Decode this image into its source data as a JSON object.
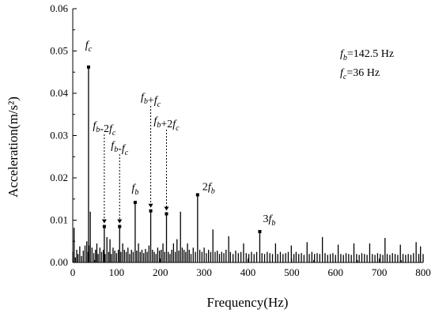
{
  "chart_data": {
    "type": "line",
    "xlabel": "Frequency(Hz)",
    "ylabel": "Acceleration(m/s²)",
    "xlim": [
      0,
      800
    ],
    "ylim": [
      0,
      0.06
    ],
    "x_ticks": [
      0,
      100,
      200,
      300,
      400,
      500,
      600,
      700,
      800
    ],
    "x_tick_labels": [
      "0",
      "100",
      "200",
      "300",
      "400",
      "500",
      "600",
      "700",
      "800"
    ],
    "y_ticks": [
      0,
      0.01,
      0.02,
      0.03,
      0.04,
      0.05,
      0.06
    ],
    "y_tick_labels": [
      "0.00",
      "0.01",
      "0.02",
      "0.03",
      "0.04",
      "0.05",
      "0.06"
    ],
    "grid": false,
    "info_lines": [
      {
        "sym": "f",
        "sub": "b",
        "rest": "=142.5 Hz"
      },
      {
        "sym": "f",
        "sub": "c",
        "rest": "=36 Hz"
      }
    ],
    "peaks": [
      {
        "x": 36,
        "y": 0.0462,
        "label": "f_c",
        "label_style": "above"
      },
      {
        "x": 72,
        "y": 0.0085,
        "label": "f_b-2f_c",
        "label_style": "arrow"
      },
      {
        "x": 107,
        "y": 0.0085,
        "label": "f_b-f_c",
        "label_style": "arrow"
      },
      {
        "x": 142.5,
        "y": 0.0142,
        "label": "f_b",
        "label_style": "above"
      },
      {
        "x": 178,
        "y": 0.0122,
        "label": "f_b+f_c",
        "label_style": "arrow"
      },
      {
        "x": 214,
        "y": 0.0115,
        "label": "f_b+2f_c",
        "label_style": "arrow"
      },
      {
        "x": 285,
        "y": 0.016,
        "label": "2f_b",
        "label_style": "right"
      },
      {
        "x": 427,
        "y": 0.0073,
        "label": "3f_b",
        "label_style": "above"
      }
    ],
    "series": [
      {
        "points": [
          [
            0,
            0.0025
          ],
          [
            3,
            0.0082
          ],
          [
            6,
            0.0012
          ],
          [
            9,
            0.003
          ],
          [
            12,
            0.002
          ],
          [
            16,
            0.0038
          ],
          [
            20,
            0.0015
          ],
          [
            24,
            0.0028
          ],
          [
            28,
            0.004
          ],
          [
            32,
            0.005
          ],
          [
            35,
            0.0025
          ],
          [
            36,
            0.0462
          ],
          [
            37,
            0.004
          ],
          [
            40,
            0.012
          ],
          [
            44,
            0.0035
          ],
          [
            48,
            0.0022
          ],
          [
            52,
            0.003
          ],
          [
            55,
            0.0045
          ],
          [
            58,
            0.002
          ],
          [
            62,
            0.0035
          ],
          [
            66,
            0.0025
          ],
          [
            70,
            0.003
          ],
          [
            72,
            0.0085
          ],
          [
            74,
            0.002
          ],
          [
            78,
            0.006
          ],
          [
            82,
            0.0025
          ],
          [
            85,
            0.0055
          ],
          [
            88,
            0.002
          ],
          [
            92,
            0.0035
          ],
          [
            96,
            0.0028
          ],
          [
            100,
            0.0022
          ],
          [
            104,
            0.003
          ],
          [
            107,
            0.0085
          ],
          [
            110,
            0.0025
          ],
          [
            114,
            0.0045
          ],
          [
            118,
            0.003
          ],
          [
            122,
            0.0025
          ],
          [
            126,
            0.0035
          ],
          [
            130,
            0.002
          ],
          [
            134,
            0.003
          ],
          [
            138,
            0.0025
          ],
          [
            142.5,
            0.0142
          ],
          [
            146,
            0.0028
          ],
          [
            150,
            0.0045
          ],
          [
            154,
            0.0025
          ],
          [
            158,
            0.003
          ],
          [
            162,
            0.0022
          ],
          [
            166,
            0.0032
          ],
          [
            170,
            0.0025
          ],
          [
            174,
            0.004
          ],
          [
            178,
            0.0122
          ],
          [
            182,
            0.003
          ],
          [
            186,
            0.0025
          ],
          [
            190,
            0.002
          ],
          [
            194,
            0.0035
          ],
          [
            198,
            0.0028
          ],
          [
            202,
            0.003
          ],
          [
            206,
            0.0045
          ],
          [
            210,
            0.0025
          ],
          [
            214,
            0.0115
          ],
          [
            218,
            0.0025
          ],
          [
            222,
            0.002
          ],
          [
            226,
            0.003
          ],
          [
            230,
            0.0045
          ],
          [
            234,
            0.0025
          ],
          [
            238,
            0.0055
          ],
          [
            242,
            0.0028
          ],
          [
            246,
            0.012
          ],
          [
            250,
            0.0035
          ],
          [
            254,
            0.003
          ],
          [
            258,
            0.0025
          ],
          [
            262,
            0.0045
          ],
          [
            266,
            0.003
          ],
          [
            270,
            0.002
          ],
          [
            275,
            0.0035
          ],
          [
            280,
            0.0025
          ],
          [
            285,
            0.016
          ],
          [
            290,
            0.003
          ],
          [
            295,
            0.0025
          ],
          [
            300,
            0.0035
          ],
          [
            305,
            0.0022
          ],
          [
            310,
            0.003
          ],
          [
            315,
            0.0025
          ],
          [
            320,
            0.0078
          ],
          [
            325,
            0.0025
          ],
          [
            330,
            0.0028
          ],
          [
            335,
            0.002
          ],
          [
            340,
            0.0025
          ],
          [
            345,
            0.0022
          ],
          [
            350,
            0.003
          ],
          [
            356,
            0.0062
          ],
          [
            360,
            0.0025
          ],
          [
            366,
            0.002
          ],
          [
            372,
            0.0028
          ],
          [
            378,
            0.0022
          ],
          [
            384,
            0.0025
          ],
          [
            390,
            0.0045
          ],
          [
            396,
            0.0022
          ],
          [
            402,
            0.002
          ],
          [
            408,
            0.0025
          ],
          [
            414,
            0.002
          ],
          [
            420,
            0.0025
          ],
          [
            427,
            0.0073
          ],
          [
            432,
            0.0022
          ],
          [
            438,
            0.002
          ],
          [
            444,
            0.0025
          ],
          [
            450,
            0.0022
          ],
          [
            456,
            0.002
          ],
          [
            463,
            0.0045
          ],
          [
            468,
            0.002
          ],
          [
            474,
            0.0025
          ],
          [
            480,
            0.002
          ],
          [
            486,
            0.0022
          ],
          [
            492,
            0.0025
          ],
          [
            499,
            0.004
          ],
          [
            505,
            0.002
          ],
          [
            510,
            0.0025
          ],
          [
            516,
            0.002
          ],
          [
            522,
            0.0022
          ],
          [
            528,
            0.0018
          ],
          [
            535,
            0.0048
          ],
          [
            540,
            0.002
          ],
          [
            546,
            0.0025
          ],
          [
            552,
            0.002
          ],
          [
            558,
            0.0022
          ],
          [
            564,
            0.002
          ],
          [
            570,
            0.006
          ],
          [
            576,
            0.0022
          ],
          [
            582,
            0.0018
          ],
          [
            588,
            0.002
          ],
          [
            594,
            0.0022
          ],
          [
            600,
            0.0018
          ],
          [
            606,
            0.0042
          ],
          [
            612,
            0.002
          ],
          [
            618,
            0.0018
          ],
          [
            624,
            0.0022
          ],
          [
            630,
            0.002
          ],
          [
            636,
            0.0018
          ],
          [
            642,
            0.0045
          ],
          [
            648,
            0.002
          ],
          [
            654,
            0.0018
          ],
          [
            660,
            0.0022
          ],
          [
            666,
            0.002
          ],
          [
            672,
            0.0018
          ],
          [
            678,
            0.0045
          ],
          [
            684,
            0.002
          ],
          [
            690,
            0.0018
          ],
          [
            696,
            0.0022
          ],
          [
            702,
            0.002
          ],
          [
            708,
            0.0018
          ],
          [
            713,
            0.0058
          ],
          [
            718,
            0.002
          ],
          [
            724,
            0.0018
          ],
          [
            730,
            0.0022
          ],
          [
            736,
            0.002
          ],
          [
            742,
            0.0018
          ],
          [
            748,
            0.0042
          ],
          [
            754,
            0.002
          ],
          [
            760,
            0.0018
          ],
          [
            766,
            0.002
          ],
          [
            772,
            0.0018
          ],
          [
            778,
            0.0022
          ],
          [
            784,
            0.0048
          ],
          [
            790,
            0.002
          ],
          [
            794,
            0.0038
          ],
          [
            800,
            0.002
          ]
        ]
      }
    ]
  }
}
